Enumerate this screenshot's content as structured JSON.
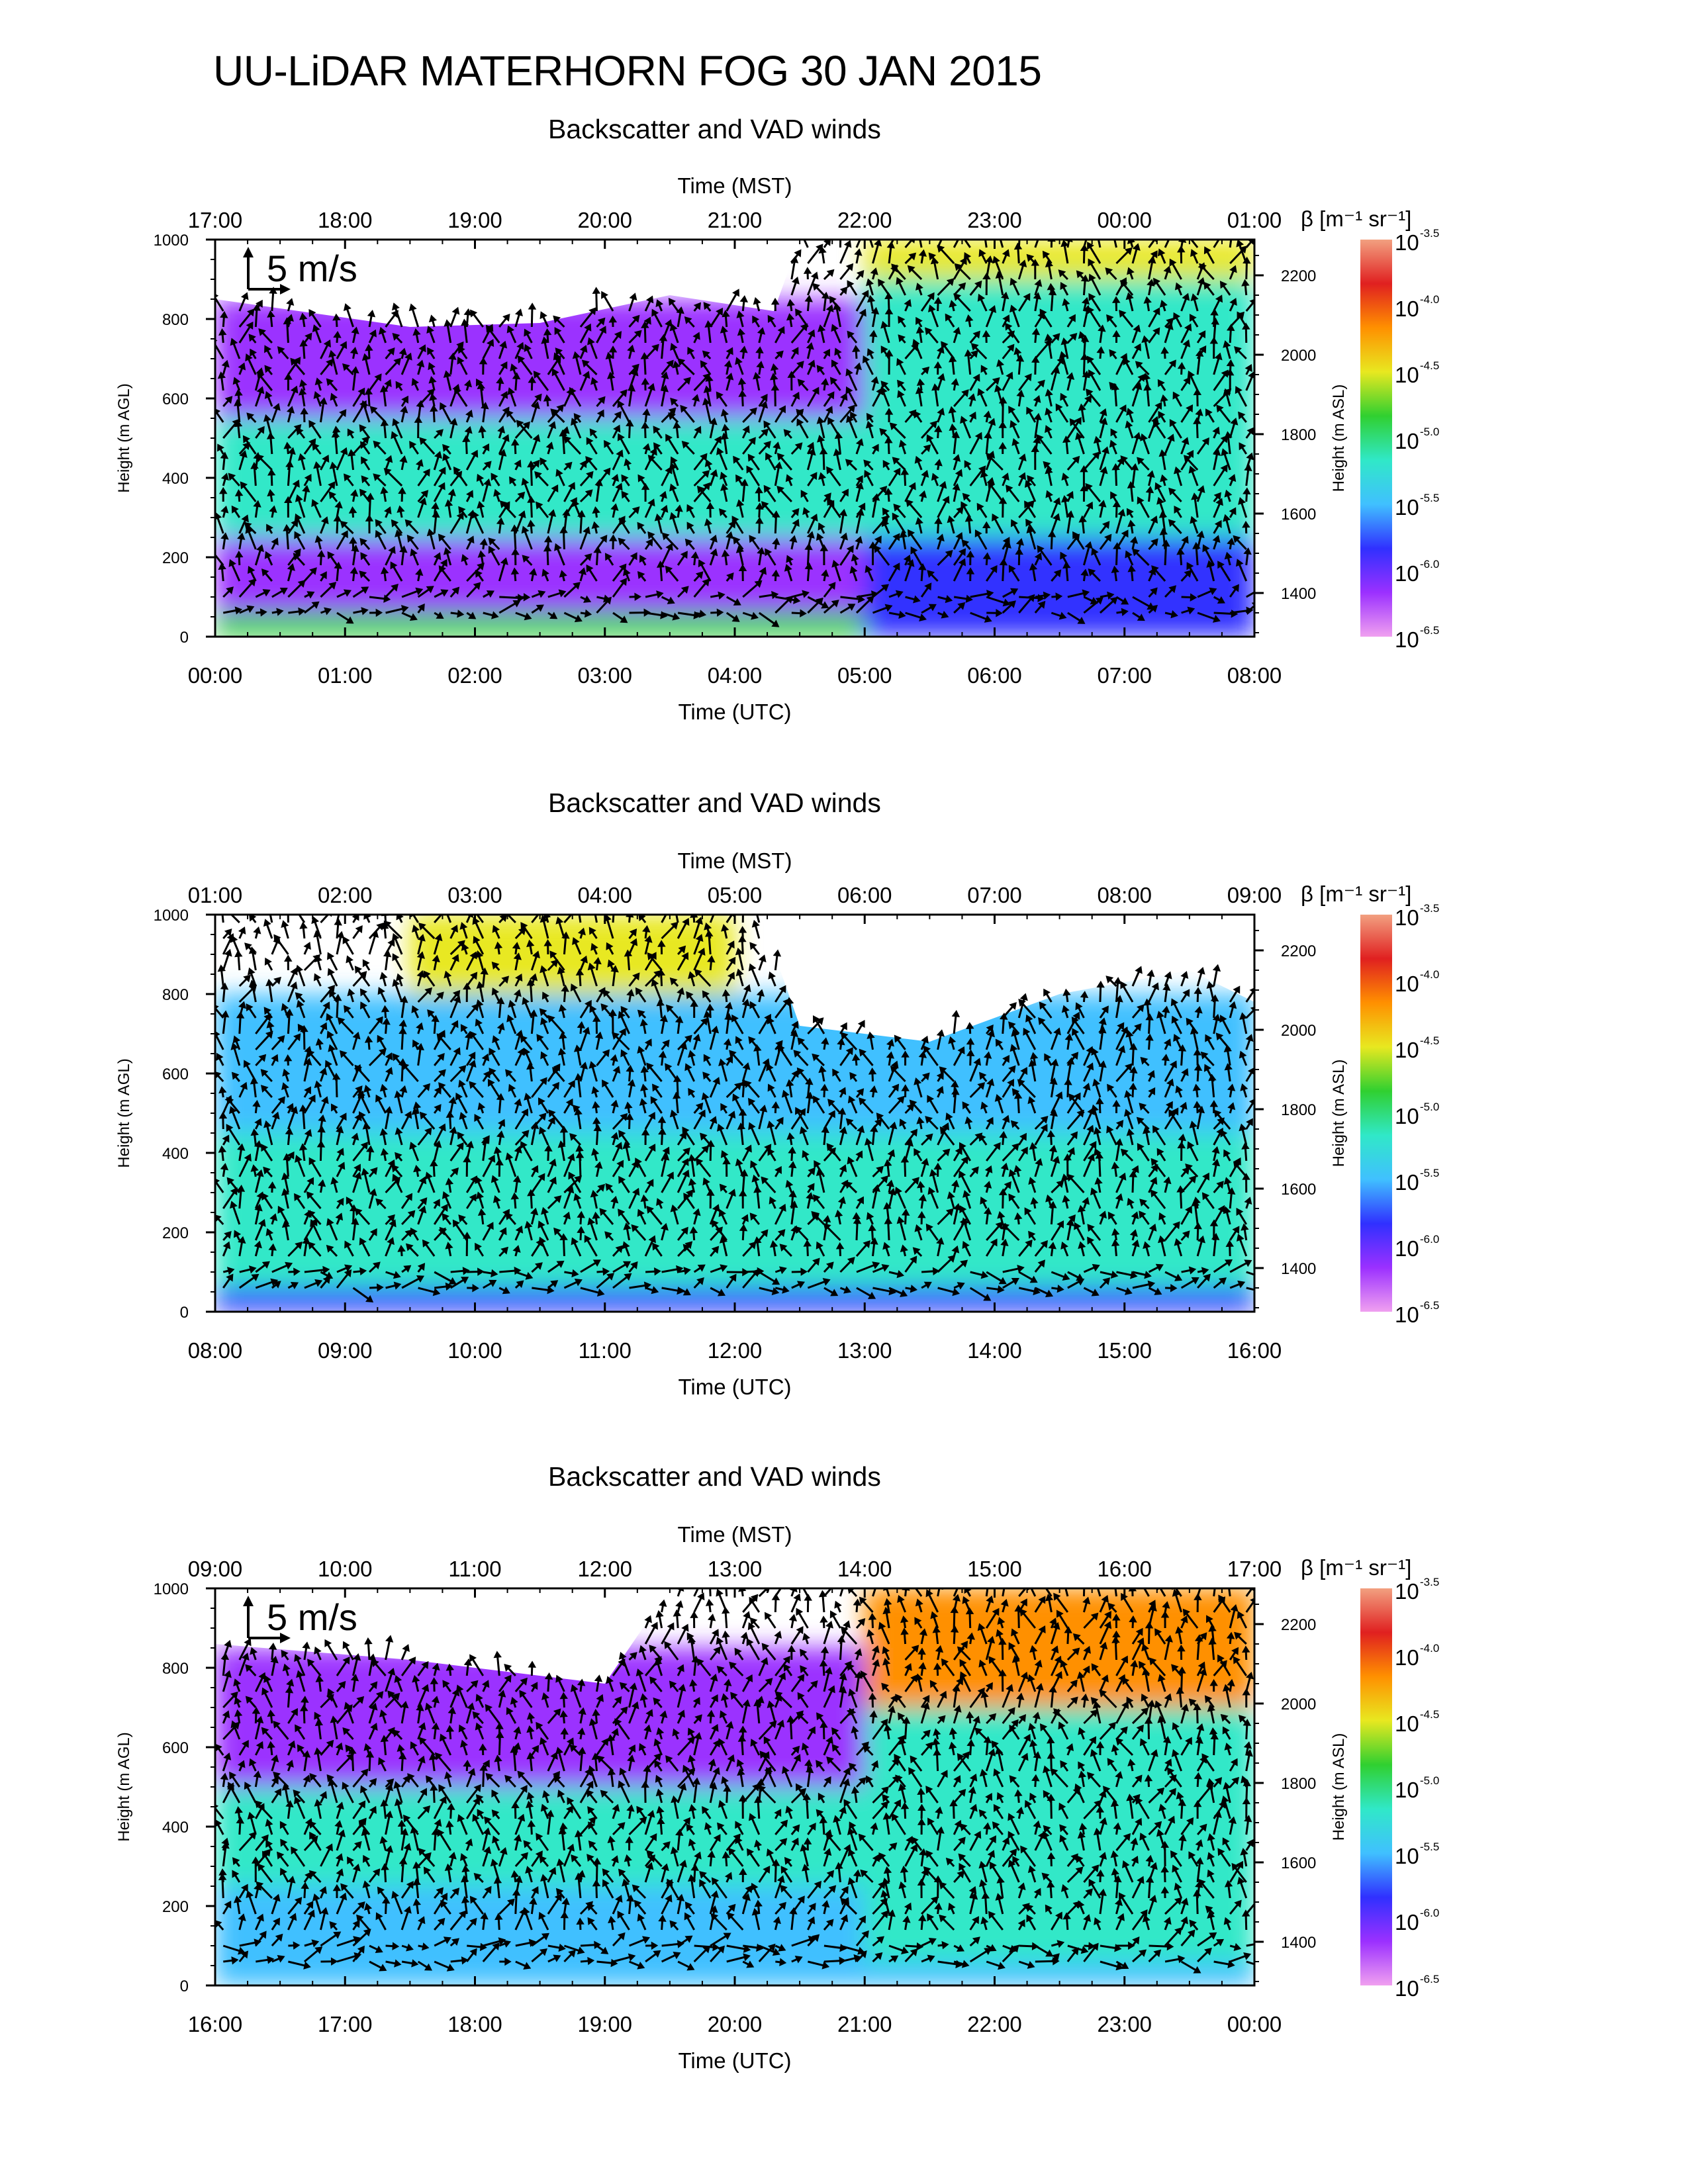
{
  "title": "UU-LiDAR MATERHORN FOG  30 JAN 2015",
  "panel_title": "Backscatter and VAD winds",
  "axis_labels": {
    "top": "Time (MST)",
    "bottom": "Time (UTC)",
    "left": "Height (m AGL)",
    "right": "Height (m ASL)",
    "colorbar": "β [m⁻¹ sr⁻¹]"
  },
  "colorbar": {
    "scale": "log",
    "base_label": "10",
    "exponents": [
      "-3.5",
      "-4.0",
      "-4.5",
      "-5.0",
      "-5.5",
      "-6.0",
      "-6.5"
    ],
    "range": [
      -6.5,
      -3.5
    ],
    "colors": [
      "#f0a0f0",
      "#9b30ff",
      "#3030ff",
      "#40c0ff",
      "#30e8c8",
      "#30d030",
      "#e8e820",
      "#ff9000",
      "#e02020",
      "#f2a080"
    ]
  },
  "arrow_scale_label": "5 m/s",
  "left_ticks": [
    "0",
    "200",
    "400",
    "600",
    "800",
    "1000"
  ],
  "right_ticks": [
    "1400",
    "1600",
    "1800",
    "2000",
    "2200"
  ],
  "chart_data": [
    {
      "type": "heatmap",
      "title": "Backscatter and VAD winds",
      "xlabel": "Time (UTC)",
      "x2label": "Time (MST)",
      "ylabel": "Height (m AGL)",
      "y2label": "Height (m ASL)",
      "xlim_hours": [
        0,
        8
      ],
      "ylim": [
        0,
        1000
      ],
      "bottom_ticks": [
        "00:00",
        "01:00",
        "02:00",
        "03:00",
        "04:00",
        "05:00",
        "06:00",
        "07:00",
        "08:00"
      ],
      "top_ticks": [
        "17:00",
        "18:00",
        "19:00",
        "20:00",
        "21:00",
        "22:00",
        "23:00",
        "00:00",
        "01:00"
      ],
      "show_scale_arrow": true,
      "cloud_top_m": [
        [
          0,
          850
        ],
        [
          1.5,
          780
        ],
        [
          2.5,
          790
        ],
        [
          3.5,
          860
        ],
        [
          4.3,
          820
        ],
        [
          4.5,
          1000
        ],
        [
          8,
          1000
        ]
      ],
      "log_beta_layers": [
        {
          "t": [
            0,
            5
          ],
          "z": [
            0,
            60
          ],
          "v": -5.0
        },
        {
          "t": [
            0,
            5
          ],
          "z": [
            60,
            250
          ],
          "v": -6.3
        },
        {
          "t": [
            0,
            5
          ],
          "z": [
            250,
            550
          ],
          "v": -5.3
        },
        {
          "t": [
            0,
            5
          ],
          "z": [
            550,
            850
          ],
          "v": -6.2
        },
        {
          "t": [
            5,
            8
          ],
          "z": [
            0,
            250
          ],
          "v": -5.7
        },
        {
          "t": [
            5,
            8
          ],
          "z": [
            250,
            900
          ],
          "v": -5.1
        },
        {
          "t": [
            5,
            8
          ],
          "z": [
            900,
            1000
          ],
          "v": -4.6
        }
      ]
    },
    {
      "type": "heatmap",
      "title": "Backscatter and VAD winds",
      "xlabel": "Time (UTC)",
      "x2label": "Time (MST)",
      "ylabel": "Height (m AGL)",
      "y2label": "Height (m ASL)",
      "xlim_hours": [
        8,
        16
      ],
      "ylim": [
        0,
        1000
      ],
      "bottom_ticks": [
        "08:00",
        "09:00",
        "10:00",
        "11:00",
        "12:00",
        "13:00",
        "14:00",
        "15:00",
        "16:00"
      ],
      "top_ticks": [
        "01:00",
        "02:00",
        "03:00",
        "04:00",
        "05:00",
        "06:00",
        "07:00",
        "08:00",
        "09:00"
      ],
      "show_scale_arrow": false,
      "cloud_top_m": [
        [
          8,
          1000
        ],
        [
          12.2,
          1000
        ],
        [
          12.5,
          720
        ],
        [
          13.5,
          680
        ],
        [
          14.5,
          800
        ],
        [
          15.5,
          860
        ],
        [
          16,
          780
        ]
      ],
      "log_beta_layers": [
        {
          "t": [
            8,
            16
          ],
          "z": [
            0,
            60
          ],
          "v": -5.7
        },
        {
          "t": [
            8,
            16
          ],
          "z": [
            60,
            450
          ],
          "v": -5.2
        },
        {
          "t": [
            8,
            16
          ],
          "z": [
            450,
            800
          ],
          "v": -5.5
        },
        {
          "t": [
            9.5,
            12
          ],
          "z": [
            800,
            1000
          ],
          "v": -4.4
        }
      ]
    },
    {
      "type": "heatmap",
      "title": "Backscatter and VAD winds",
      "xlabel": "Time (UTC)",
      "x2label": "Time (MST)",
      "ylabel": "Height (m AGL)",
      "y2label": "Height (m ASL)",
      "xlim_hours": [
        16,
        24
      ],
      "ylim": [
        0,
        1000
      ],
      "bottom_ticks": [
        "16:00",
        "17:00",
        "18:00",
        "19:00",
        "20:00",
        "21:00",
        "22:00",
        "23:00",
        "00:00"
      ],
      "top_ticks": [
        "09:00",
        "10:00",
        "11:00",
        "12:00",
        "13:00",
        "14:00",
        "15:00",
        "16:00",
        "17:00"
      ],
      "show_scale_arrow": true,
      "cloud_top_m": [
        [
          16,
          860
        ],
        [
          17.5,
          820
        ],
        [
          19.0,
          760
        ],
        [
          19.5,
          1000
        ],
        [
          24,
          1000
        ]
      ],
      "log_beta_layers": [
        {
          "t": [
            16,
            24
          ],
          "z": [
            0,
            60
          ],
          "v": -5.6
        },
        {
          "t": [
            16,
            21
          ],
          "z": [
            60,
            250
          ],
          "v": -5.6
        },
        {
          "t": [
            16,
            21
          ],
          "z": [
            250,
            500
          ],
          "v": -5.3
        },
        {
          "t": [
            16,
            21
          ],
          "z": [
            500,
            850
          ],
          "v": -6.2
        },
        {
          "t": [
            21,
            24
          ],
          "z": [
            60,
            700
          ],
          "v": -5.3
        },
        {
          "t": [
            21,
            24
          ],
          "z": [
            700,
            1000
          ],
          "v": -4.3
        }
      ]
    }
  ]
}
